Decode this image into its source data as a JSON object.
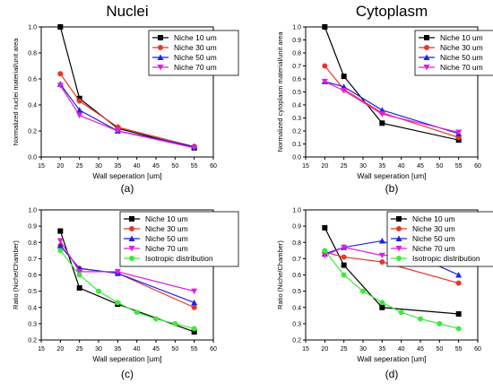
{
  "chart_data": [
    {
      "panel": "(a)",
      "type": "line",
      "title": "Nuclei",
      "xlabel": "Wall seperation [um]",
      "ylabel": "Normalized nuclei material/unit area",
      "xlim": [
        15,
        60
      ],
      "ylim": [
        0,
        1.0
      ],
      "xticks": [
        15,
        20,
        25,
        30,
        35,
        40,
        45,
        50,
        55,
        60
      ],
      "yticks": [
        0.0,
        0.2,
        0.4,
        0.6,
        0.8,
        1.0
      ],
      "legend_position": "top-right",
      "series": [
        {
          "name": "Niche 10 um",
          "color": "#000000",
          "marker": "square",
          "x": [
            20,
            25,
            35,
            55
          ],
          "y": [
            1.0,
            0.45,
            0.22,
            0.07
          ]
        },
        {
          "name": "Niche 30 um",
          "color": "#e8372a",
          "marker": "circle",
          "x": [
            20,
            25,
            35,
            55
          ],
          "y": [
            0.64,
            0.43,
            0.23,
            0.08
          ]
        },
        {
          "name": "Niche 50 um",
          "color": "#1f22e0",
          "marker": "triangle-up",
          "x": [
            20,
            25,
            35,
            55
          ],
          "y": [
            0.56,
            0.36,
            0.2,
            0.08
          ]
        },
        {
          "name": "Niche 70 um",
          "color": "#e01fe0",
          "marker": "triangle-down",
          "x": [
            20,
            25,
            35,
            55
          ],
          "y": [
            0.55,
            0.32,
            0.2,
            0.07
          ]
        }
      ]
    },
    {
      "panel": "(b)",
      "type": "line",
      "title": "Cytoplasm",
      "xlabel": "Wall seperation [um]",
      "ylabel": "Normalized cytoplasm material/unit area",
      "xlim": [
        15,
        60
      ],
      "ylim": [
        0,
        1.0
      ],
      "xticks": [
        15,
        20,
        25,
        30,
        35,
        40,
        45,
        50,
        55,
        60
      ],
      "yticks": [
        0.0,
        0.1,
        0.2,
        0.3,
        0.4,
        0.5,
        0.6,
        0.7,
        0.8,
        0.9,
        1.0
      ],
      "legend_position": "top-right",
      "series": [
        {
          "name": "Niche 10 um",
          "color": "#000000",
          "marker": "square",
          "x": [
            20,
            25,
            35,
            55
          ],
          "y": [
            1.0,
            0.62,
            0.26,
            0.13
          ]
        },
        {
          "name": "Niche 30 um",
          "color": "#e8372a",
          "marker": "circle",
          "x": [
            20,
            25,
            35,
            55
          ],
          "y": [
            0.7,
            0.52,
            0.34,
            0.15
          ]
        },
        {
          "name": "Niche 50 um",
          "color": "#1f22e0",
          "marker": "triangle-up",
          "x": [
            20,
            25,
            35,
            55
          ],
          "y": [
            0.58,
            0.54,
            0.36,
            0.18
          ]
        },
        {
          "name": "Niche 70 um",
          "color": "#e01fe0",
          "marker": "triangle-down",
          "x": [
            20,
            25,
            35,
            55
          ],
          "y": [
            0.58,
            0.51,
            0.33,
            0.19
          ]
        }
      ]
    },
    {
      "panel": "(c)",
      "type": "line",
      "title": "",
      "xlabel": "Wall seperation [um]",
      "ylabel": "Ratio (Niche/Chamber)",
      "xlim": [
        15,
        60
      ],
      "ylim": [
        0.2,
        1.0
      ],
      "xticks": [
        15,
        20,
        25,
        30,
        35,
        40,
        45,
        50,
        55,
        60
      ],
      "yticks": [
        0.2,
        0.3,
        0.4,
        0.5,
        0.6,
        0.7,
        0.8,
        0.9,
        1.0
      ],
      "legend_position": "top-right",
      "series": [
        {
          "name": "Niche 10 um",
          "color": "#000000",
          "marker": "square",
          "x": [
            20,
            25,
            35,
            55
          ],
          "y": [
            0.87,
            0.52,
            0.42,
            0.25
          ]
        },
        {
          "name": "Niche 30 um",
          "color": "#e8372a",
          "marker": "circle",
          "x": [
            20,
            25,
            35,
            55
          ],
          "y": [
            0.78,
            0.64,
            0.61,
            0.4
          ]
        },
        {
          "name": "Niche 50 um",
          "color": "#1f22e0",
          "marker": "triangle-up",
          "x": [
            20,
            25,
            35,
            55
          ],
          "y": [
            0.78,
            0.64,
            0.61,
            0.43
          ]
        },
        {
          "name": "Niche 70 um",
          "color": "#e01fe0",
          "marker": "triangle-down",
          "x": [
            20,
            25,
            35,
            55
          ],
          "y": [
            0.81,
            0.62,
            0.62,
            0.5
          ]
        },
        {
          "name": "Isotropic distribution",
          "color": "#3ee83e",
          "marker": "circle",
          "x": [
            20,
            25,
            30,
            35,
            40,
            45,
            50,
            55
          ],
          "y": [
            0.75,
            0.6,
            0.5,
            0.43,
            0.37,
            0.33,
            0.3,
            0.27
          ]
        }
      ]
    },
    {
      "panel": "(d)",
      "type": "line",
      "title": "",
      "xlabel": "Wall seperation [um]",
      "ylabel": "Ratio (Niche/Chamber)",
      "xlim": [
        15,
        60
      ],
      "ylim": [
        0.2,
        1.0
      ],
      "xticks": [
        15,
        20,
        25,
        30,
        35,
        40,
        45,
        50,
        55,
        60
      ],
      "yticks": [
        0.2,
        0.3,
        0.4,
        0.5,
        0.6,
        0.7,
        0.8,
        0.9,
        1.0
      ],
      "legend_position": "top-right",
      "series": [
        {
          "name": "Niche 10 um",
          "color": "#000000",
          "marker": "square",
          "x": [
            20,
            25,
            35,
            55
          ],
          "y": [
            0.89,
            0.66,
            0.4,
            0.36
          ]
        },
        {
          "name": "Niche 30 um",
          "color": "#e8372a",
          "marker": "circle",
          "x": [
            20,
            25,
            35,
            55
          ],
          "y": [
            0.74,
            0.71,
            0.68,
            0.55
          ]
        },
        {
          "name": "Niche 50 um",
          "color": "#1f22e0",
          "marker": "triangle-up",
          "x": [
            20,
            25,
            35,
            55
          ],
          "y": [
            0.73,
            0.77,
            0.81,
            0.6
          ]
        },
        {
          "name": "Niche 70 um",
          "color": "#e01fe0",
          "marker": "triangle-down",
          "x": [
            20,
            25,
            35,
            55
          ],
          "y": [
            0.72,
            0.77,
            0.72,
            0.74
          ]
        },
        {
          "name": "Isotropic distribution",
          "color": "#3ee83e",
          "marker": "circle",
          "x": [
            20,
            25,
            30,
            35,
            40,
            45,
            50,
            55
          ],
          "y": [
            0.75,
            0.6,
            0.5,
            0.43,
            0.37,
            0.33,
            0.3,
            0.27
          ]
        }
      ]
    }
  ]
}
